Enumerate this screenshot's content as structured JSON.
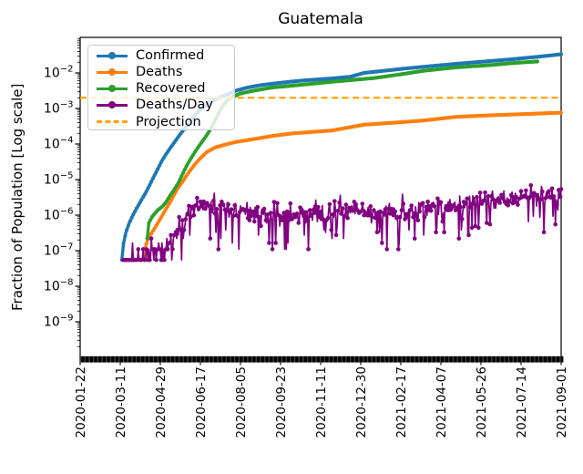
{
  "title": "Guatemala",
  "ylabel": "Fraction of Population [Log scale]",
  "legend": {
    "entries": [
      {
        "label": "Confirmed",
        "color": "#1f77b4",
        "style": "solid-marker"
      },
      {
        "label": "Deaths",
        "color": "#ff7f0e",
        "style": "solid-marker"
      },
      {
        "label": "Recovered",
        "color": "#2ca02c",
        "style": "solid-marker"
      },
      {
        "label": "Deaths/Day",
        "color": "#800080",
        "style": "solid-marker"
      },
      {
        "label": "Projection",
        "color": "#ffa500",
        "style": "dashed"
      }
    ]
  },
  "colors": {
    "background": "#ffffff",
    "axis": "#000000",
    "legend_border": "#c9c9c9"
  },
  "chart_data": {
    "type": "line",
    "title": "Guatemala",
    "xlabel": "",
    "ylabel": "Fraction of Population [Log scale]",
    "x_axis": {
      "unit": "date",
      "start_date": "2020-01-22",
      "end_date": "2021-09-01",
      "span_days": 588,
      "tick_interval_days": 49,
      "tick_labels": [
        "2020-01-22",
        "2020-03-11",
        "2020-04-29",
        "2020-06-17",
        "2020-08-05",
        "2020-09-23",
        "2020-11-11",
        "2020-12-30",
        "2021-02-17",
        "2021-04-07",
        "2021-05-26",
        "2021-07-14",
        "2021-09-01"
      ]
    },
    "y_axis": {
      "scale": "log",
      "limits": [
        1e-10,
        0.1
      ],
      "tick_exponents": [
        -2,
        -3,
        -4,
        -5,
        -6,
        -7,
        -8,
        -9
      ]
    },
    "series": [
      {
        "name": "Confirmed",
        "color": "#1f77b4",
        "render": "interpolated-daily",
        "points_day_fraction": [
          [
            51,
            5.5e-08
          ],
          [
            53,
            1.6e-07
          ],
          [
            56,
            3.3e-07
          ],
          [
            60,
            6e-07
          ],
          [
            65,
            1.05e-06
          ],
          [
            70,
            1.7e-06
          ],
          [
            75,
            2.7e-06
          ],
          [
            80,
            4.2e-06
          ],
          [
            85,
            7e-06
          ],
          [
            90,
            1.2e-05
          ],
          [
            95,
            2e-05
          ],
          [
            100,
            3.4e-05
          ],
          [
            105,
            5.2e-05
          ],
          [
            110,
            7.6e-05
          ],
          [
            115,
            0.00011
          ],
          [
            120,
            0.00016
          ],
          [
            130,
            0.00032
          ],
          [
            140,
            0.00064
          ],
          [
            150,
            0.0011
          ],
          [
            160,
            0.0016
          ],
          [
            170,
            0.002
          ],
          [
            180,
            0.0025
          ],
          [
            191,
            0.0032
          ],
          [
            205,
            0.0039
          ],
          [
            220,
            0.0045
          ],
          [
            236,
            0.005
          ],
          [
            255,
            0.0056
          ],
          [
            275,
            0.0062
          ],
          [
            308,
            0.007
          ],
          [
            330,
            0.0078
          ],
          [
            347,
            0.01
          ],
          [
            400,
            0.0135
          ],
          [
            459,
            0.018
          ],
          [
            526,
            0.024
          ],
          [
            560,
            0.0285
          ],
          [
            588,
            0.0335
          ]
        ]
      },
      {
        "name": "Deaths",
        "color": "#ff7f0e",
        "render": "interpolated-daily",
        "points_day_fraction": [
          [
            53,
            5.5e-08
          ],
          [
            77,
            5.5e-08
          ],
          [
            79,
            1.1e-07
          ],
          [
            82,
            1.9e-07
          ],
          [
            86,
            2.8e-07
          ],
          [
            90,
            3.9e-07
          ],
          [
            95,
            6e-07
          ],
          [
            100,
            9.5e-07
          ],
          [
            105,
            1.5e-06
          ],
          [
            110,
            2.3e-06
          ],
          [
            115,
            3.8e-06
          ],
          [
            120,
            6e-06
          ],
          [
            125,
            8.5e-06
          ],
          [
            130,
            1.3e-05
          ],
          [
            136,
            2e-05
          ],
          [
            142,
            3e-05
          ],
          [
            148,
            4.2e-05
          ],
          [
            155,
            6e-05
          ],
          [
            165,
            8e-05
          ],
          [
            180,
            0.0001
          ],
          [
            191,
            0.000115
          ],
          [
            210,
            0.000135
          ],
          [
            236,
            0.00017
          ],
          [
            260,
            0.0002
          ],
          [
            285,
            0.00022
          ],
          [
            308,
            0.00024
          ],
          [
            347,
            0.00035
          ],
          [
            385,
            0.0004
          ],
          [
            420,
            0.00046
          ],
          [
            459,
            0.00058
          ],
          [
            500,
            0.00064
          ],
          [
            530,
            0.00068
          ],
          [
            560,
            0.00072
          ],
          [
            588,
            0.00076
          ]
        ]
      },
      {
        "name": "Recovered",
        "color": "#2ca02c",
        "render": "interpolated-daily",
        "points_day_fraction": [
          [
            82,
            2.2e-07
          ],
          [
            84,
            6e-07
          ],
          [
            88,
            9e-07
          ],
          [
            95,
            1.4e-06
          ],
          [
            100,
            1.7e-06
          ],
          [
            105,
            2.3e-06
          ],
          [
            110,
            3.6e-06
          ],
          [
            115,
            5.2e-06
          ],
          [
            120,
            8e-06
          ],
          [
            125,
            1.4e-05
          ],
          [
            130,
            2.4e-05
          ],
          [
            135,
            3.8e-05
          ],
          [
            140,
            5.8e-05
          ],
          [
            145,
            8.6e-05
          ],
          [
            150,
            0.000125
          ],
          [
            155,
            0.00018
          ],
          [
            160,
            0.00028
          ],
          [
            165,
            0.00046
          ],
          [
            170,
            0.0008
          ],
          [
            175,
            0.00125
          ],
          [
            180,
            0.0017
          ],
          [
            186,
            0.0021
          ],
          [
            195,
            0.0026
          ],
          [
            210,
            0.0031
          ],
          [
            235,
            0.0039
          ],
          [
            260,
            0.0044
          ],
          [
            285,
            0.005
          ],
          [
            310,
            0.0057
          ],
          [
            335,
            0.0064
          ],
          [
            360,
            0.0072
          ],
          [
            390,
            0.009
          ],
          [
            420,
            0.0115
          ],
          [
            459,
            0.0143
          ],
          [
            500,
            0.0165
          ],
          [
            530,
            0.019
          ],
          [
            559,
            0.021
          ]
        ]
      },
      {
        "name": "Deaths/Day",
        "color": "#800080",
        "render": "noisy-daily",
        "envelope_day_fraction": [
          [
            53,
            6e-08
          ],
          [
            85,
            7e-08
          ],
          [
            100,
            1.2e-07
          ],
          [
            115,
            2.2e-07
          ],
          [
            125,
            5e-07
          ],
          [
            133,
            1.2e-06
          ],
          [
            140,
            1.8e-06
          ],
          [
            155,
            1.9e-06
          ],
          [
            170,
            1.7e-06
          ],
          [
            185,
            1.5e-06
          ],
          [
            200,
            1.3e-06
          ],
          [
            215,
            1e-06
          ],
          [
            235,
            8.5e-07
          ],
          [
            255,
            8e-07
          ],
          [
            275,
            9.5e-07
          ],
          [
            295,
            1.15e-06
          ],
          [
            315,
            1.3e-06
          ],
          [
            335,
            1.25e-06
          ],
          [
            355,
            1.1e-06
          ],
          [
            375,
            1e-06
          ],
          [
            395,
            1.15e-06
          ],
          [
            415,
            1.35e-06
          ],
          [
            435,
            1.55e-06
          ],
          [
            455,
            1.8e-06
          ],
          [
            475,
            2.1e-06
          ],
          [
            495,
            2.4e-06
          ],
          [
            515,
            2.7e-06
          ],
          [
            535,
            3e-06
          ],
          [
            555,
            3.2e-06
          ],
          [
            575,
            3.4e-06
          ],
          [
            588,
            3.5e-06
          ]
        ],
        "noise": {
          "seed": 11,
          "log10_spread": 0.3,
          "dip_probability": 0.1,
          "dip_factor_range": [
            0.1,
            0.35
          ],
          "spike_probability": 0.07,
          "spike_factor_range": [
            1.5,
            2.1
          ],
          "quantize_step_fraction": 5.5e-08
        }
      }
    ],
    "projection": {
      "name": "Projection",
      "value_fraction": 0.002,
      "color": "#ffa500",
      "style": "dashed"
    }
  }
}
